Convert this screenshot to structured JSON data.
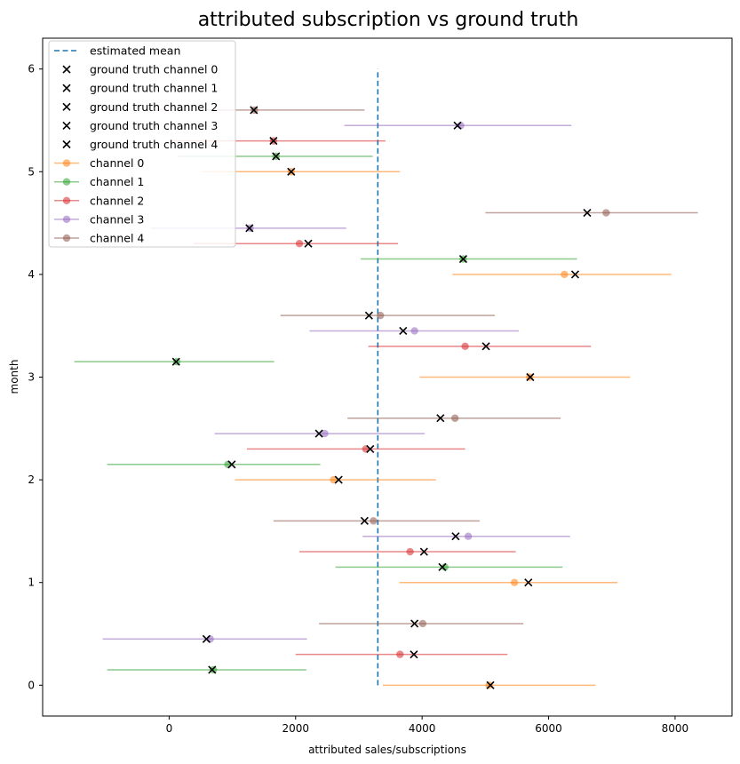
{
  "chart_data": {
    "type": "scatter",
    "title": "attributed subscription vs ground truth",
    "xlabel": "attributed sales/subscriptions",
    "ylabel": "month",
    "xlim": [
      -2000,
      8900
    ],
    "ylim": [
      -0.3,
      6.3
    ],
    "xticks": [
      0,
      2000,
      4000,
      6000,
      8000
    ],
    "yticks": [
      0,
      1,
      2,
      3,
      4,
      5,
      6
    ],
    "grid": false,
    "legend_position": "top-left",
    "estimated_mean": {
      "name": "estimated mean",
      "x": 3300,
      "y_range": [
        0,
        6
      ],
      "color": "#1f77b4"
    },
    "channels": [
      {
        "name": "channel 0",
        "truth_name": "ground truth channel 0",
        "color": "#ff7f0e",
        "offset": 0.0
      },
      {
        "name": "channel 1",
        "truth_name": "ground truth channel 1",
        "color": "#2ca02c",
        "offset": 0.15
      },
      {
        "name": "channel 2",
        "truth_name": "ground truth channel 2",
        "color": "#d62728",
        "offset": 0.3
      },
      {
        "name": "channel 3",
        "truth_name": "ground truth channel 3",
        "color": "#9467bd",
        "offset": 0.45
      },
      {
        "name": "channel 4",
        "truth_name": "ground truth channel 4",
        "color": "#8c564b",
        "offset": 0.6
      }
    ],
    "months": [
      {
        "month": 0,
        "estimates": [
          5060,
          700,
          3650,
          650,
          4010
        ],
        "ground_truth": [
          5080,
          680,
          3870,
          590,
          3880
        ],
        "errbar_low": [
          3380,
          -980,
          2000,
          -1050,
          2370
        ],
        "errbar_high": [
          6740,
          2170,
          5350,
          2180,
          5600
        ]
      },
      {
        "month": 1,
        "estimates": [
          5460,
          4360,
          3810,
          4730,
          3230
        ],
        "ground_truth": [
          5680,
          4320,
          4030,
          4530,
          3090
        ],
        "errbar_low": [
          3640,
          2630,
          2060,
          3060,
          1650
        ],
        "errbar_high": [
          7090,
          6220,
          5480,
          6340,
          4910
        ]
      },
      {
        "month": 2,
        "estimates": [
          2600,
          930,
          3110,
          2460,
          4520
        ],
        "ground_truth": [
          2680,
          990,
          3180,
          2370,
          4290
        ],
        "errbar_low": [
          1040,
          -980,
          1230,
          720,
          2820
        ],
        "errbar_high": [
          4220,
          2390,
          4680,
          4040,
          6190
        ]
      },
      {
        "month": 3,
        "estimates": [
          5700,
          120,
          4680,
          3880,
          3340
        ],
        "ground_truth": [
          5710,
          110,
          5010,
          3700,
          3160
        ],
        "errbar_low": [
          3960,
          -1500,
          3150,
          2220,
          1760
        ],
        "errbar_high": [
          7290,
          1660,
          6670,
          5530,
          5150
        ]
      },
      {
        "month": 4,
        "estimates": [
          6250,
          4650,
          2060,
          1280,
          6910
        ],
        "ground_truth": [
          6420,
          4650,
          2200,
          1270,
          6610
        ],
        "errbar_low": [
          4480,
          3030,
          380,
          -300,
          5000
        ],
        "errbar_high": [
          7940,
          6450,
          3620,
          2800,
          8360
        ]
      },
      {
        "month": 5,
        "estimates": [
          1930,
          1690,
          1650,
          4610,
          1350
        ],
        "ground_truth": [
          1930,
          1690,
          1650,
          4560,
          1340
        ],
        "errbar_low": [
          520,
          130,
          -10,
          2770,
          -360
        ],
        "errbar_high": [
          3650,
          3220,
          3420,
          6360,
          3090
        ]
      }
    ]
  }
}
